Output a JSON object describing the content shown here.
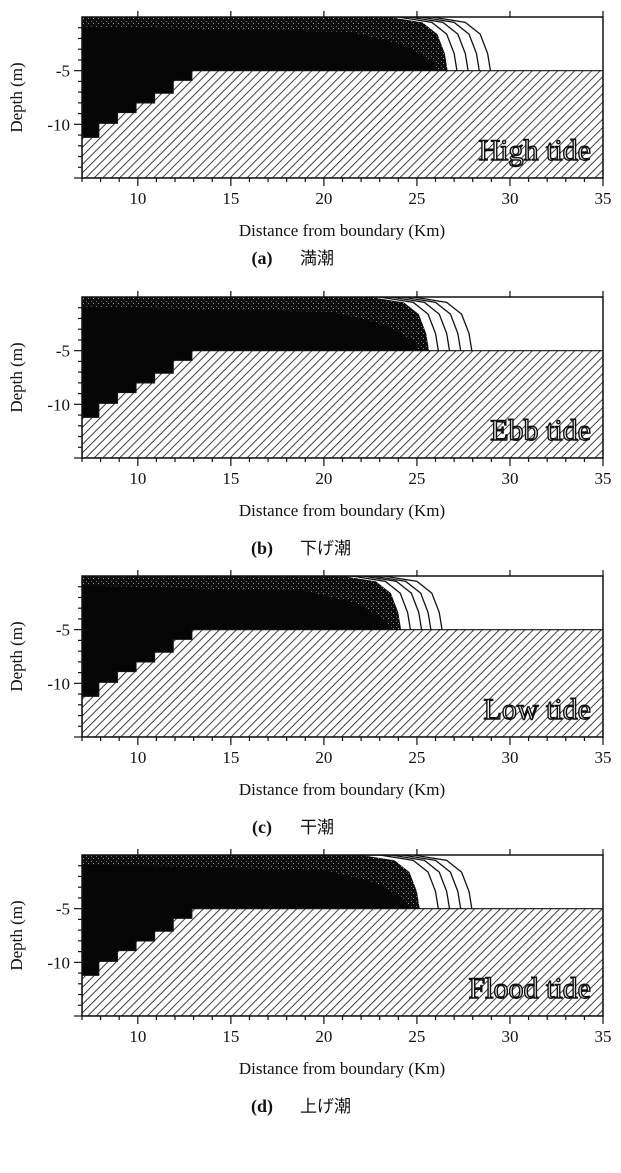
{
  "chart_data": [
    {
      "type": "contour",
      "panel": "(a)",
      "caption_letter": "(a)",
      "caption_text": "満潮",
      "tide_label": "High tide",
      "xlabel": "Distance from boundary (Km)",
      "ylabel": "Depth (m)",
      "xlim": [
        7,
        35
      ],
      "ylim": [
        -15,
        0
      ],
      "xticks": [
        10,
        15,
        20,
        25,
        30,
        35
      ],
      "yticks": [
        -5,
        -10
      ],
      "plume_front_km": [
        27.0,
        27.6,
        28.2,
        28.8
      ],
      "plume_core_km": 26.5
    },
    {
      "type": "contour",
      "panel": "(b)",
      "caption_letter": "(b)",
      "caption_text": "下げ潮",
      "tide_label": "Ebb tide",
      "xlabel": "Distance from boundary (Km)",
      "ylabel": "Depth (m)",
      "xlim": [
        7,
        35
      ],
      "ylim": [
        -15,
        0
      ],
      "xticks": [
        10,
        15,
        20,
        25,
        30,
        35
      ],
      "yticks": [
        -5,
        -10
      ],
      "plume_front_km": [
        26.0,
        26.6,
        27.2,
        27.8
      ],
      "plume_core_km": 25.5
    },
    {
      "type": "contour",
      "panel": "(c)",
      "caption_letter": "(c)",
      "caption_text": "干潮",
      "tide_label": "Low tide",
      "xlabel": "Distance from boundary (Km)",
      "ylabel": "Depth (m)",
      "xlim": [
        7,
        35
      ],
      "ylim": [
        -15,
        0
      ],
      "xticks": [
        10,
        15,
        20,
        25,
        30,
        35
      ],
      "yticks": [
        -5,
        -10
      ],
      "plume_front_km": [
        24.5,
        25.1,
        25.6,
        26.2
      ],
      "plume_core_km": 24.0
    },
    {
      "type": "contour",
      "panel": "(d)",
      "caption_letter": "(d)",
      "caption_text": "上げ潮",
      "tide_label": "Flood tide",
      "xlabel": "Distance from boundary (Km)",
      "ylabel": "Depth (m)",
      "xlim": [
        7,
        35
      ],
      "ylim": [
        -15,
        0
      ],
      "xticks": [
        10,
        15,
        20,
        25,
        30,
        35
      ],
      "yticks": [
        -5,
        -10
      ],
      "plume_front_km": [
        26.0,
        26.6,
        27.2,
        27.8
      ],
      "plume_core_km": 25.0
    }
  ],
  "seabed_profile": {
    "x_km": [
      7,
      7.9,
      7.9,
      8.9,
      8.9,
      9.9,
      9.9,
      10.9,
      10.9,
      11.9,
      11.9,
      12.9,
      12.9,
      35
    ],
    "depth_m": [
      -11.2,
      -11.2,
      -9.9,
      -9.9,
      -8.9,
      -8.9,
      -8.0,
      -8.0,
      -7.1,
      -7.1,
      -5.9,
      -5.9,
      -5.0,
      -5.0
    ]
  },
  "colors": {
    "plume": "#0d0d0d",
    "seabed_hatch": "#111111",
    "background": "#ffffff"
  }
}
